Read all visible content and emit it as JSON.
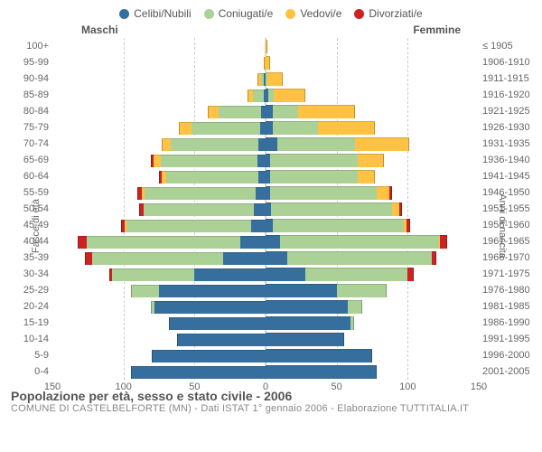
{
  "legend": [
    {
      "label": "Celibi/Nubili",
      "color": "#366f9e"
    },
    {
      "label": "Coniugati/e",
      "color": "#abd197"
    },
    {
      "label": "Vedovi/e",
      "color": "#ffc243"
    },
    {
      "label": "Divorziati/e",
      "color": "#cc2222"
    }
  ],
  "headers": {
    "male": "Maschi",
    "female": "Femmine"
  },
  "axis_labels": {
    "left": "Fasce di età",
    "right": "Anni di nascita"
  },
  "xlim": 150,
  "xticks": [
    150,
    100,
    50,
    0,
    50,
    100,
    150
  ],
  "title": "Popolazione per età, sesso e stato civile - 2006",
  "subtitle": "COMUNE DI CASTELBELFORTE (MN) - Dati ISTAT 1° gennaio 2006 - Elaborazione TUTTITALIA.IT",
  "colors": {
    "cel": "#366f9e",
    "con": "#abd197",
    "ved": "#ffc243",
    "div": "#cc2222",
    "border": "#888"
  },
  "rows": [
    {
      "age": "100+",
      "born": "≤ 1905",
      "m": {
        "cel": 0,
        "con": 0,
        "ved": 0,
        "div": 0
      },
      "f": {
        "cel": 0,
        "con": 0,
        "ved": 1,
        "div": 0
      }
    },
    {
      "age": "95-99",
      "born": "1906-1910",
      "m": {
        "cel": 0,
        "con": 0,
        "ved": 1,
        "div": 0
      },
      "f": {
        "cel": 0,
        "con": 0,
        "ved": 3,
        "div": 0
      }
    },
    {
      "age": "90-94",
      "born": "1911-1915",
      "m": {
        "cel": 1,
        "con": 2,
        "ved": 3,
        "div": 0
      },
      "f": {
        "cel": 0,
        "con": 1,
        "ved": 11,
        "div": 0
      }
    },
    {
      "age": "85-89",
      "born": "1916-1920",
      "m": {
        "cel": 1,
        "con": 8,
        "ved": 4,
        "div": 0
      },
      "f": {
        "cel": 2,
        "con": 4,
        "ved": 22,
        "div": 0
      }
    },
    {
      "age": "80-84",
      "born": "1921-1925",
      "m": {
        "cel": 3,
        "con": 30,
        "ved": 8,
        "div": 0
      },
      "f": {
        "cel": 5,
        "con": 18,
        "ved": 40,
        "div": 0
      }
    },
    {
      "age": "75-79",
      "born": "1926-1930",
      "m": {
        "cel": 4,
        "con": 48,
        "ved": 9,
        "div": 0
      },
      "f": {
        "cel": 5,
        "con": 32,
        "ved": 40,
        "div": 0
      }
    },
    {
      "age": "70-74",
      "born": "1931-1935",
      "m": {
        "cel": 5,
        "con": 62,
        "ved": 6,
        "div": 0
      },
      "f": {
        "cel": 8,
        "con": 55,
        "ved": 38,
        "div": 0
      }
    },
    {
      "age": "65-69",
      "born": "1936-1940",
      "m": {
        "cel": 6,
        "con": 68,
        "ved": 5,
        "div": 2
      },
      "f": {
        "cel": 3,
        "con": 62,
        "ved": 18,
        "div": 0
      }
    },
    {
      "age": "60-64",
      "born": "1941-1945",
      "m": {
        "cel": 5,
        "con": 65,
        "ved": 3,
        "div": 2
      },
      "f": {
        "cel": 3,
        "con": 62,
        "ved": 12,
        "div": 0
      }
    },
    {
      "age": "55-59",
      "born": "1946-1950",
      "m": {
        "cel": 7,
        "con": 78,
        "ved": 2,
        "div": 3
      },
      "f": {
        "cel": 3,
        "con": 75,
        "ved": 9,
        "div": 2
      }
    },
    {
      "age": "50-54",
      "born": "1951-1955",
      "m": {
        "cel": 8,
        "con": 78,
        "ved": 0,
        "div": 3
      },
      "f": {
        "cel": 4,
        "con": 85,
        "ved": 5,
        "div": 2
      }
    },
    {
      "age": "45-49",
      "born": "1956-1960",
      "m": {
        "cel": 10,
        "con": 88,
        "ved": 1,
        "div": 3
      },
      "f": {
        "cel": 5,
        "con": 92,
        "ved": 2,
        "div": 3
      }
    },
    {
      "age": "40-44",
      "born": "1961-1965",
      "m": {
        "cel": 18,
        "con": 108,
        "ved": 0,
        "div": 6
      },
      "f": {
        "cel": 10,
        "con": 112,
        "ved": 1,
        "div": 5
      }
    },
    {
      "age": "35-39",
      "born": "1966-1970",
      "m": {
        "cel": 30,
        "con": 92,
        "ved": 0,
        "div": 5
      },
      "f": {
        "cel": 15,
        "con": 102,
        "ved": 0,
        "div": 3
      }
    },
    {
      "age": "30-34",
      "born": "1971-1975",
      "m": {
        "cel": 50,
        "con": 58,
        "ved": 0,
        "div": 2
      },
      "f": {
        "cel": 28,
        "con": 72,
        "ved": 0,
        "div": 4
      }
    },
    {
      "age": "25-29",
      "born": "1976-1980",
      "m": {
        "cel": 75,
        "con": 20,
        "ved": 0,
        "div": 0
      },
      "f": {
        "cel": 50,
        "con": 35,
        "ved": 0,
        "div": 0
      }
    },
    {
      "age": "20-24",
      "born": "1981-1985",
      "m": {
        "cel": 78,
        "con": 3,
        "ved": 0,
        "div": 0
      },
      "f": {
        "cel": 58,
        "con": 10,
        "ved": 0,
        "div": 0
      }
    },
    {
      "age": "15-19",
      "born": "1986-1990",
      "m": {
        "cel": 68,
        "con": 0,
        "ved": 0,
        "div": 0
      },
      "f": {
        "cel": 60,
        "con": 2,
        "ved": 0,
        "div": 0
      }
    },
    {
      "age": "10-14",
      "born": "1991-1995",
      "m": {
        "cel": 62,
        "con": 0,
        "ved": 0,
        "div": 0
      },
      "f": {
        "cel": 55,
        "con": 0,
        "ved": 0,
        "div": 0
      }
    },
    {
      "age": "5-9",
      "born": "1996-2000",
      "m": {
        "cel": 80,
        "con": 0,
        "ved": 0,
        "div": 0
      },
      "f": {
        "cel": 75,
        "con": 0,
        "ved": 0,
        "div": 0
      }
    },
    {
      "age": "0-4",
      "born": "2001-2005",
      "m": {
        "cel": 95,
        "con": 0,
        "ved": 0,
        "div": 0
      },
      "f": {
        "cel": 78,
        "con": 0,
        "ved": 0,
        "div": 0
      }
    }
  ]
}
